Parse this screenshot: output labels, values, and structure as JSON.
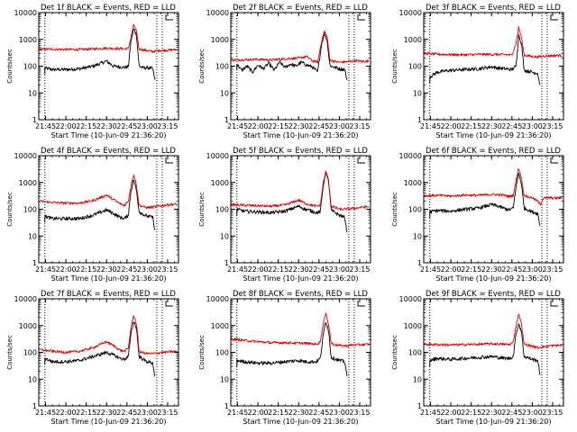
{
  "figure": {
    "ylabel": "Counts/sec",
    "xlabel": "Start Time (10-Jun-09 21:36:20)",
    "xticks": [
      "21:45",
      "22:00",
      "22:15",
      "22:30",
      "22:45",
      "23:00",
      "23:15"
    ],
    "yticks": [
      "1",
      "10",
      "100",
      "1000",
      "10000"
    ]
  },
  "chart_data": [
    {
      "title": "Det 1f BLACK = Events, RED = LLD",
      "type": "line",
      "ylim": [
        1,
        10000
      ],
      "xlim_min": [
        0,
        103
      ],
      "markers_min": [
        4.5,
        87,
        91
      ],
      "series": [
        {
          "name": "Events",
          "color": "#000000",
          "x": [
            4.5,
            10,
            20,
            30,
            40,
            50,
            55,
            60,
            63,
            66,
            68,
            70,
            72,
            74,
            76,
            78,
            80,
            84,
            86
          ],
          "y": [
            85,
            75,
            75,
            80,
            100,
            155,
            100,
            95,
            90,
            95,
            900,
            2500,
            1500,
            100,
            90,
            85,
            90,
            80,
            25
          ]
        },
        {
          "name": "LLD",
          "color": "#e00000",
          "x": [
            0,
            10,
            20,
            30,
            40,
            50,
            60,
            66,
            68,
            70,
            72,
            74,
            76,
            78,
            80,
            84,
            88,
            92,
            97,
            102
          ],
          "y": [
            430,
            430,
            420,
            420,
            440,
            470,
            450,
            450,
            1200,
            3600,
            2000,
            430,
            420,
            400,
            380,
            350,
            380,
            390,
            400,
            420
          ]
        }
      ]
    },
    {
      "title": "Det 2f BLACK = Events, RED = LLD",
      "type": "line",
      "ylim": [
        1,
        10000
      ],
      "xlim_min": [
        0,
        103
      ],
      "markers_min": [
        4.5,
        87,
        91
      ],
      "series": [
        {
          "name": "Events",
          "color": "#000000",
          "x": [
            4.5,
            8,
            12,
            16,
            20,
            24,
            28,
            32,
            36,
            40,
            44,
            48,
            52,
            56,
            60,
            64,
            67,
            69,
            71,
            73,
            75,
            77,
            80,
            84,
            86
          ],
          "y": [
            120,
            70,
            100,
            60,
            110,
            80,
            130,
            70,
            140,
            90,
            120,
            100,
            140,
            110,
            95,
            60,
            700,
            1700,
            900,
            110,
            95,
            90,
            80,
            75,
            25
          ]
        },
        {
          "name": "LLD",
          "color": "#e00000",
          "x": [
            0,
            10,
            20,
            30,
            40,
            50,
            56,
            60,
            64,
            67,
            69,
            71,
            73,
            75,
            77,
            80,
            84,
            88,
            92,
            97,
            102
          ],
          "y": [
            170,
            175,
            180,
            170,
            190,
            200,
            230,
            160,
            140,
            900,
            2000,
            1300,
            170,
            160,
            150,
            140,
            145,
            150,
            160,
            150,
            155
          ]
        }
      ]
    },
    {
      "title": "Det 3f BLACK = Events, RED = LLD",
      "type": "line",
      "ylim": [
        1,
        10000
      ],
      "xlim_min": [
        0,
        103
      ],
      "markers_min": [
        4.5,
        87,
        91
      ],
      "series": [
        {
          "name": "Events",
          "color": "#000000",
          "x": [
            4.5,
            10,
            20,
            30,
            40,
            50,
            55,
            60,
            65,
            68,
            70,
            72,
            74,
            76,
            78,
            80,
            84,
            86
          ],
          "y": [
            40,
            60,
            70,
            75,
            80,
            95,
            85,
            80,
            75,
            100,
            1500,
            700,
            75,
            65,
            65,
            60,
            55,
            15
          ]
        },
        {
          "name": "LLD",
          "color": "#e00000",
          "x": [
            0,
            10,
            20,
            30,
            40,
            50,
            60,
            65,
            68,
            70,
            72,
            74,
            76,
            78,
            80,
            84,
            88,
            92,
            97,
            102
          ],
          "y": [
            300,
            280,
            270,
            265,
            275,
            275,
            270,
            260,
            700,
            2800,
            1200,
            260,
            250,
            240,
            230,
            220,
            240,
            245,
            250,
            255
          ]
        }
      ]
    },
    {
      "title": "Det 4f BLACK = Events, RED = LLD",
      "type": "line",
      "ylim": [
        1,
        10000
      ],
      "xlim_min": [
        0,
        103
      ],
      "markers_min": [
        4.5,
        87,
        91
      ],
      "series": [
        {
          "name": "Events",
          "color": "#000000",
          "x": [
            4.5,
            10,
            20,
            30,
            40,
            50,
            55,
            60,
            63,
            66,
            68,
            70,
            72,
            74,
            76,
            78,
            80,
            84,
            86
          ],
          "y": [
            55,
            45,
            45,
            45,
            60,
            95,
            70,
            50,
            45,
            60,
            500,
            1300,
            500,
            80,
            70,
            60,
            55,
            50,
            12
          ]
        },
        {
          "name": "LLD",
          "color": "#e00000",
          "x": [
            0,
            10,
            20,
            30,
            40,
            50,
            55,
            60,
            63,
            66,
            68,
            70,
            72,
            74,
            76,
            78,
            80,
            84,
            88,
            92,
            97,
            102
          ],
          "y": [
            200,
            180,
            170,
            170,
            210,
            340,
            230,
            160,
            140,
            200,
            800,
            2000,
            800,
            140,
            130,
            120,
            115,
            120,
            130,
            140,
            150,
            155
          ]
        }
      ]
    },
    {
      "title": "Det 5f BLACK = Events, RED = LLD",
      "type": "line",
      "ylim": [
        1,
        10000
      ],
      "xlim_min": [
        0,
        103
      ],
      "markers_min": [
        4.5,
        87,
        91
      ],
      "series": [
        {
          "name": "Events",
          "color": "#000000",
          "x": [
            4.5,
            10,
            20,
            30,
            40,
            50,
            55,
            60,
            63,
            66,
            68,
            70,
            72,
            74,
            76,
            78,
            80,
            84,
            86
          ],
          "y": [
            100,
            85,
            80,
            75,
            85,
            130,
            100,
            85,
            75,
            80,
            700,
            2500,
            1200,
            90,
            80,
            70,
            60,
            50,
            10
          ]
        },
        {
          "name": "LLD",
          "color": "#e00000",
          "x": [
            0,
            10,
            20,
            30,
            40,
            50,
            55,
            60,
            63,
            66,
            68,
            70,
            72,
            74,
            76,
            78,
            80,
            84,
            88,
            92,
            97,
            102
          ],
          "y": [
            150,
            140,
            135,
            130,
            145,
            220,
            165,
            140,
            130,
            140,
            900,
            2500,
            1200,
            130,
            120,
            110,
            100,
            100,
            105,
            110,
            120,
            125
          ]
        }
      ]
    },
    {
      "title": "Det 6f BLACK = Events, RED = LLD",
      "type": "line",
      "ylim": [
        1,
        10000
      ],
      "xlim_min": [
        0,
        103
      ],
      "markers_min": [
        4.5,
        87,
        91
      ],
      "series": [
        {
          "name": "Events",
          "color": "#000000",
          "x": [
            4.5,
            10,
            20,
            30,
            40,
            50,
            55,
            60,
            63,
            66,
            68,
            70,
            72,
            74,
            76,
            78,
            80,
            84,
            86
          ],
          "y": [
            80,
            90,
            85,
            100,
            110,
            150,
            130,
            105,
            95,
            110,
            700,
            2200,
            900,
            110,
            100,
            90,
            80,
            70,
            20
          ]
        },
        {
          "name": "LLD",
          "color": "#e00000",
          "x": [
            0,
            10,
            20,
            30,
            40,
            50,
            55,
            60,
            63,
            66,
            68,
            70,
            72,
            74,
            76,
            78,
            80,
            84,
            86,
            88,
            92,
            97,
            102
          ],
          "y": [
            320,
            330,
            310,
            340,
            330,
            360,
            350,
            330,
            300,
            330,
            1200,
            3500,
            1500,
            330,
            300,
            280,
            270,
            200,
            150,
            260,
            270,
            260,
            270
          ]
        }
      ]
    },
    {
      "title": "Det 7f BLACK = Events, RED = LLD",
      "type": "line",
      "ylim": [
        1,
        10000
      ],
      "xlim_min": [
        0,
        103
      ],
      "markers_min": [
        4.5,
        87,
        91
      ],
      "series": [
        {
          "name": "Events",
          "color": "#000000",
          "x": [
            4.5,
            10,
            20,
            30,
            40,
            50,
            55,
            60,
            63,
            66,
            68,
            70,
            72,
            74,
            76,
            78,
            80,
            84,
            86
          ],
          "y": [
            60,
            45,
            45,
            50,
            70,
            100,
            80,
            60,
            55,
            70,
            500,
            1500,
            800,
            70,
            60,
            50,
            45,
            40,
            10
          ]
        },
        {
          "name": "LLD",
          "color": "#e00000",
          "x": [
            0,
            10,
            20,
            30,
            40,
            50,
            55,
            60,
            63,
            66,
            68,
            70,
            72,
            74,
            76,
            78,
            80,
            84,
            88,
            92,
            97,
            102
          ],
          "y": [
            130,
            110,
            100,
            110,
            150,
            250,
            180,
            120,
            110,
            140,
            900,
            2500,
            1200,
            110,
            100,
            95,
            90,
            90,
            95,
            100,
            105,
            110
          ]
        }
      ]
    },
    {
      "title": "Det 8f BLACK = Events, RED = LLD",
      "type": "line",
      "ylim": [
        1,
        10000
      ],
      "xlim_min": [
        0,
        103
      ],
      "markers_min": [
        4.5,
        87,
        91
      ],
      "series": [
        {
          "name": "Events",
          "color": "#000000",
          "x": [
            4.5,
            10,
            20,
            30,
            40,
            50,
            55,
            60,
            63,
            66,
            68,
            70,
            72,
            74,
            76,
            78,
            80,
            84,
            86
          ],
          "y": [
            50,
            45,
            40,
            40,
            45,
            50,
            45,
            45,
            45,
            60,
            400,
            1500,
            700,
            65,
            60,
            55,
            50,
            45,
            10
          ]
        },
        {
          "name": "LLD",
          "color": "#e00000",
          "x": [
            0,
            10,
            20,
            30,
            40,
            50,
            55,
            60,
            63,
            66,
            68,
            70,
            72,
            74,
            76,
            78,
            80,
            84,
            88,
            92,
            97,
            102
          ],
          "y": [
            320,
            280,
            250,
            230,
            230,
            220,
            220,
            210,
            200,
            250,
            1100,
            2800,
            1200,
            220,
            200,
            190,
            180,
            175,
            185,
            190,
            195,
            200
          ]
        }
      ]
    },
    {
      "title": "Det 9f BLACK = Events, RED = LLD",
      "type": "line",
      "ylim": [
        1,
        10000
      ],
      "xlim_min": [
        0,
        103
      ],
      "markers_min": [
        4.5,
        87,
        91
      ],
      "series": [
        {
          "name": "Events",
          "color": "#000000",
          "x": [
            4.5,
            10,
            20,
            30,
            40,
            50,
            55,
            60,
            63,
            66,
            68,
            70,
            72,
            74,
            76,
            78,
            80,
            84,
            86
          ],
          "y": [
            50,
            60,
            55,
            60,
            65,
            70,
            65,
            60,
            60,
            70,
            500,
            1200,
            600,
            70,
            65,
            60,
            55,
            50,
            12
          ]
        },
        {
          "name": "LLD",
          "color": "#e00000",
          "x": [
            0,
            10,
            20,
            30,
            40,
            50,
            55,
            60,
            63,
            66,
            68,
            70,
            72,
            74,
            76,
            78,
            80,
            84,
            88,
            92,
            97,
            102
          ],
          "y": [
            200,
            195,
            190,
            195,
            200,
            210,
            205,
            200,
            195,
            240,
            1000,
            2800,
            1200,
            200,
            190,
            180,
            170,
            150,
            160,
            175,
            180,
            185
          ]
        }
      ]
    }
  ]
}
